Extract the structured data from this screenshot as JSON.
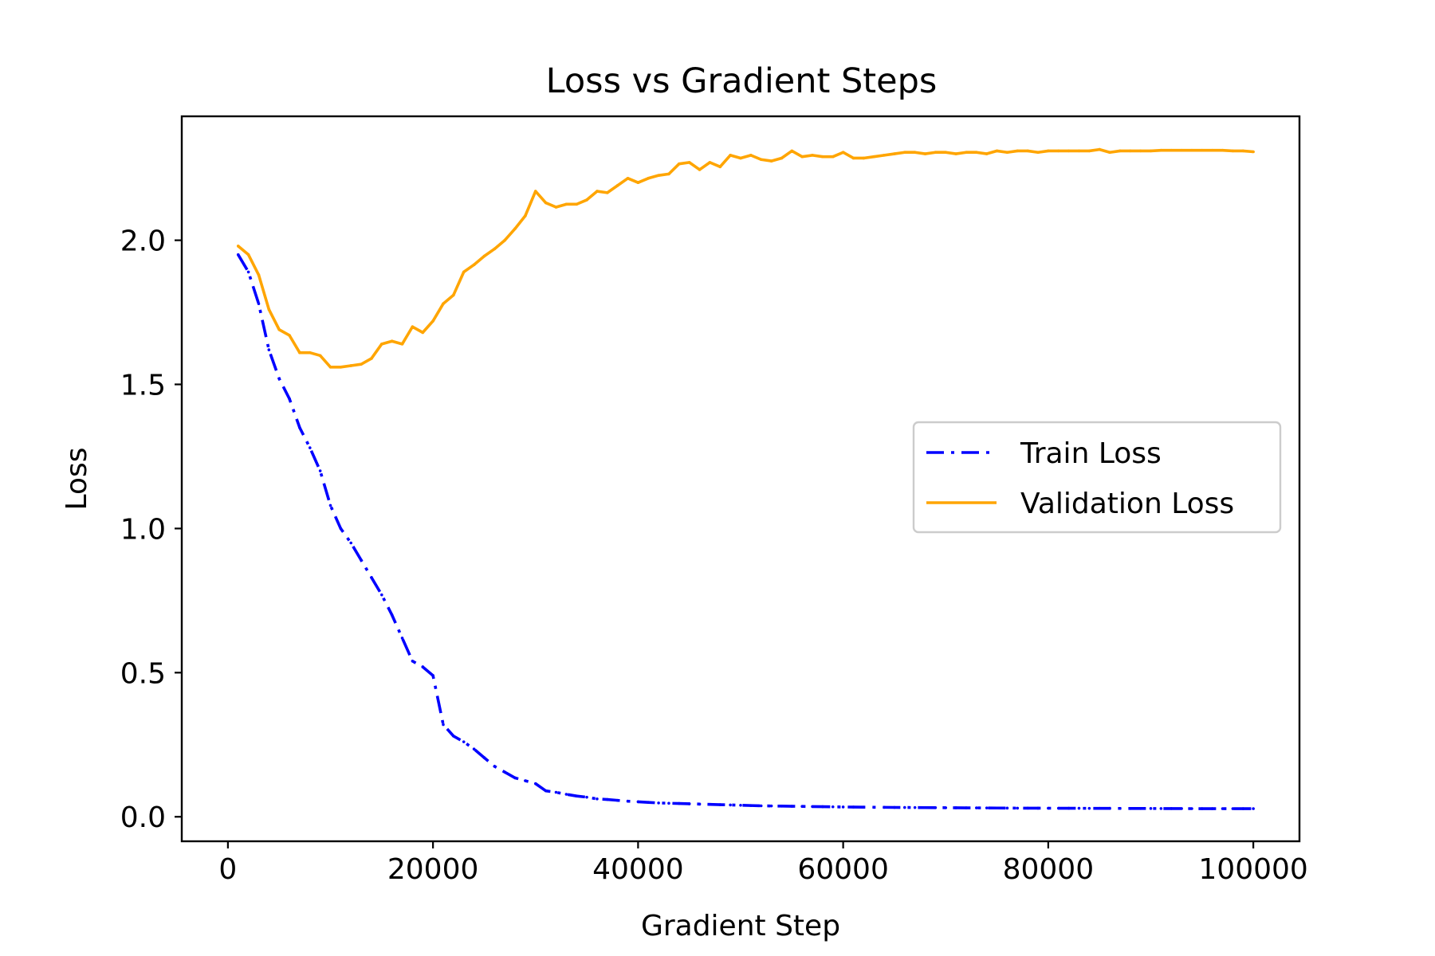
{
  "chart_data": {
    "type": "line",
    "title": "Loss vs Gradient Steps",
    "xlabel": "Gradient Step",
    "ylabel": "Loss",
    "xlim": [
      -4500,
      104500
    ],
    "ylim": [
      -0.085,
      2.43
    ],
    "xticks": [
      0,
      20000,
      40000,
      60000,
      80000,
      100000
    ],
    "xtick_labels": [
      "0",
      "20000",
      "40000",
      "60000",
      "80000",
      "100000"
    ],
    "yticks": [
      0.0,
      0.5,
      1.0,
      1.5,
      2.0
    ],
    "ytick_labels": [
      "0.0",
      "0.5",
      "1.0",
      "1.5",
      "2.0"
    ],
    "grid": false,
    "legend_position": "center-right",
    "x": [
      1000,
      2000,
      3000,
      4000,
      5000,
      6000,
      7000,
      8000,
      9000,
      10000,
      11000,
      12000,
      13000,
      14000,
      15000,
      16000,
      17000,
      18000,
      19000,
      20000,
      21000,
      22000,
      23000,
      24000,
      25000,
      26000,
      27000,
      28000,
      29000,
      30000,
      31000,
      32000,
      33000,
      34000,
      35000,
      36000,
      37000,
      38000,
      39000,
      40000,
      41000,
      42000,
      43000,
      44000,
      45000,
      46000,
      47000,
      48000,
      49000,
      50000,
      51000,
      52000,
      53000,
      54000,
      55000,
      56000,
      57000,
      58000,
      59000,
      60000,
      61000,
      62000,
      63000,
      64000,
      65000,
      66000,
      67000,
      68000,
      69000,
      70000,
      71000,
      72000,
      73000,
      74000,
      75000,
      76000,
      77000,
      78000,
      79000,
      80000,
      81000,
      82000,
      83000,
      84000,
      85000,
      86000,
      87000,
      88000,
      89000,
      90000,
      91000,
      92000,
      93000,
      94000,
      95000,
      96000,
      97000,
      98000,
      99000,
      100000
    ],
    "series": [
      {
        "name": "Train Loss",
        "color": "#0000ff",
        "style": "dashdot",
        "values": [
          1.95,
          1.89,
          1.78,
          1.62,
          1.52,
          1.45,
          1.35,
          1.28,
          1.2,
          1.08,
          1.0,
          0.95,
          0.89,
          0.83,
          0.77,
          0.7,
          0.62,
          0.54,
          0.52,
          0.49,
          0.32,
          0.28,
          0.26,
          0.235,
          0.205,
          0.175,
          0.155,
          0.135,
          0.125,
          0.115,
          0.09,
          0.085,
          0.078,
          0.072,
          0.068,
          0.062,
          0.06,
          0.057,
          0.054,
          0.052,
          0.05,
          0.048,
          0.047,
          0.046,
          0.045,
          0.044,
          0.043,
          0.042,
          0.041,
          0.04,
          0.039,
          0.038,
          0.0375,
          0.037,
          0.0365,
          0.036,
          0.0355,
          0.035,
          0.0345,
          0.034,
          0.0337,
          0.0334,
          0.0331,
          0.0328,
          0.0325,
          0.0322,
          0.032,
          0.0318,
          0.0316,
          0.0314,
          0.0312,
          0.031,
          0.0308,
          0.0306,
          0.0304,
          0.0302,
          0.03,
          0.0299,
          0.0298,
          0.0297,
          0.0296,
          0.0295,
          0.0294,
          0.0293,
          0.0292,
          0.0291,
          0.029,
          0.0289,
          0.0288,
          0.0287,
          0.0286,
          0.0285,
          0.0284,
          0.0283,
          0.0282,
          0.0281,
          0.028,
          0.028,
          0.028,
          0.028
        ]
      },
      {
        "name": "Validation Loss",
        "color": "#ffa500",
        "style": "solid",
        "values": [
          1.98,
          1.95,
          1.88,
          1.76,
          1.69,
          1.67,
          1.61,
          1.61,
          1.6,
          1.56,
          1.56,
          1.565,
          1.57,
          1.59,
          1.64,
          1.65,
          1.64,
          1.7,
          1.68,
          1.72,
          1.78,
          1.81,
          1.89,
          1.915,
          1.945,
          1.97,
          2.0,
          2.04,
          2.085,
          2.17,
          2.13,
          2.115,
          2.125,
          2.125,
          2.14,
          2.17,
          2.165,
          2.19,
          2.215,
          2.2,
          2.215,
          2.225,
          2.23,
          2.265,
          2.27,
          2.245,
          2.27,
          2.255,
          2.295,
          2.285,
          2.295,
          2.28,
          2.275,
          2.285,
          2.31,
          2.29,
          2.295,
          2.29,
          2.29,
          2.305,
          2.285,
          2.285,
          2.29,
          2.295,
          2.3,
          2.305,
          2.305,
          2.3,
          2.305,
          2.305,
          2.3,
          2.305,
          2.305,
          2.3,
          2.31,
          2.305,
          2.31,
          2.31,
          2.305,
          2.31,
          2.31,
          2.31,
          2.31,
          2.31,
          2.315,
          2.305,
          2.31,
          2.31,
          2.31,
          2.31,
          2.312,
          2.312,
          2.312,
          2.312,
          2.312,
          2.312,
          2.312,
          2.31,
          2.31,
          2.307
        ]
      }
    ]
  }
}
